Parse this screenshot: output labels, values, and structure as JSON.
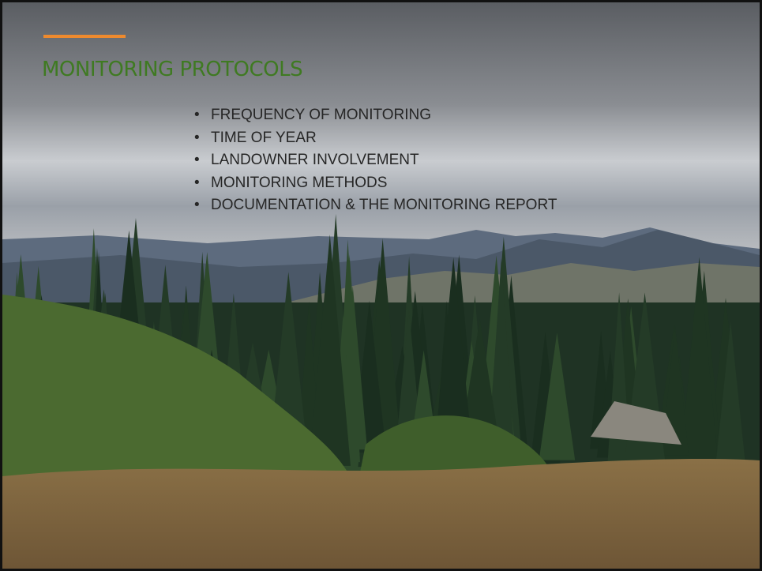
{
  "slide": {
    "title": "MONITORING PROTOCOLS",
    "bullets": [
      "FREQUENCY OF MONITORING",
      "TIME OF YEAR",
      "LANDOWNER INVOLVEMENT",
      "MONITORING METHODS",
      "DOCUMENTATION & THE MONITORING REPORT"
    ]
  }
}
